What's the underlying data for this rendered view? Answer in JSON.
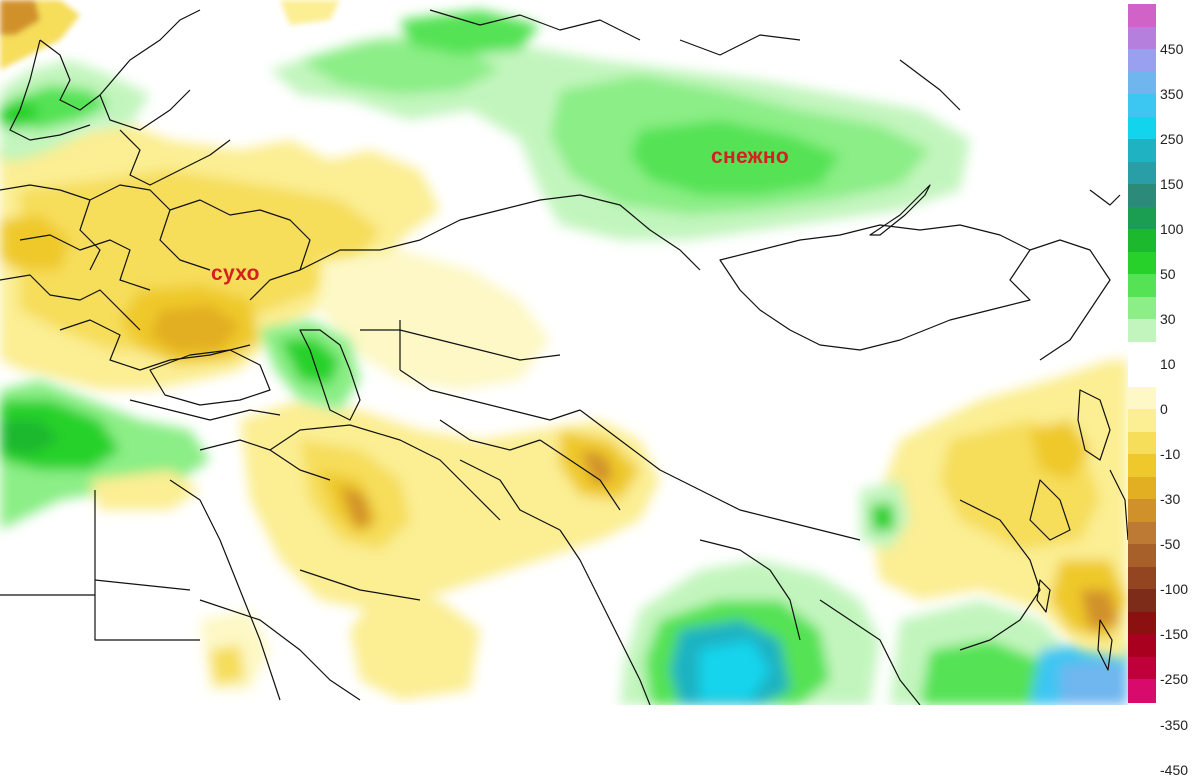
{
  "map": {
    "labels": {
      "dry": "сухо",
      "snowy": "снежно"
    },
    "label_color": "#d42020"
  },
  "legend": {
    "ticks": [
      "450",
      "350",
      "250",
      "150",
      "100",
      "50",
      "30",
      "10",
      "0",
      "-10",
      "-30",
      "-50",
      "-100",
      "-150",
      "-250",
      "-350",
      "-450"
    ],
    "colors": [
      "#d062c8",
      "#b47fdd",
      "#9aa0f0",
      "#6fb6ef",
      "#3cc6f2",
      "#12d4ec",
      "#1fb2c3",
      "#2a9ea6",
      "#2b8a78",
      "#1c9e52",
      "#1cb82e",
      "#28d12a",
      "#55e254",
      "#8bee86",
      "#c2f5bd",
      "#ffffff",
      "#ffffff",
      "#fdf8c5",
      "#fbee93",
      "#f6dd5a",
      "#efc92c",
      "#e2ae22",
      "#d1912a",
      "#bd7a34",
      "#a8602b",
      "#934421",
      "#7d2c19",
      "#8c1010",
      "#a8001e",
      "#c0003a",
      "#d80a6c"
    ]
  }
}
